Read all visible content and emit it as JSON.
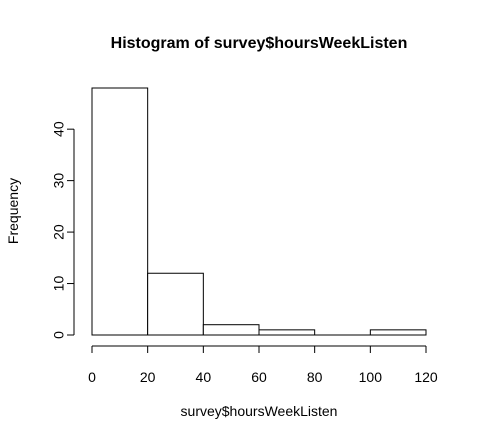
{
  "chart_data": {
    "type": "bar",
    "title": "Histogram of survey$hoursWeekListen",
    "xlabel": "survey$hoursWeekListen",
    "ylabel": "Frequency",
    "bins": [
      {
        "from": 0,
        "to": 20,
        "count": 48
      },
      {
        "from": 20,
        "to": 40,
        "count": 12
      },
      {
        "from": 40,
        "to": 60,
        "count": 2
      },
      {
        "from": 60,
        "to": 80,
        "count": 1
      },
      {
        "from": 80,
        "to": 100,
        "count": 0
      },
      {
        "from": 100,
        "to": 120,
        "count": 1
      }
    ],
    "xlim": [
      0,
      120
    ],
    "ylim": [
      0,
      48
    ],
    "x_ticks": [
      0,
      20,
      40,
      60,
      80,
      100,
      120
    ],
    "y_ticks": [
      0,
      10,
      20,
      30,
      40
    ],
    "grid": false,
    "colors": {
      "bar_fill": "#ffffff",
      "bar_stroke": "#000000"
    }
  }
}
